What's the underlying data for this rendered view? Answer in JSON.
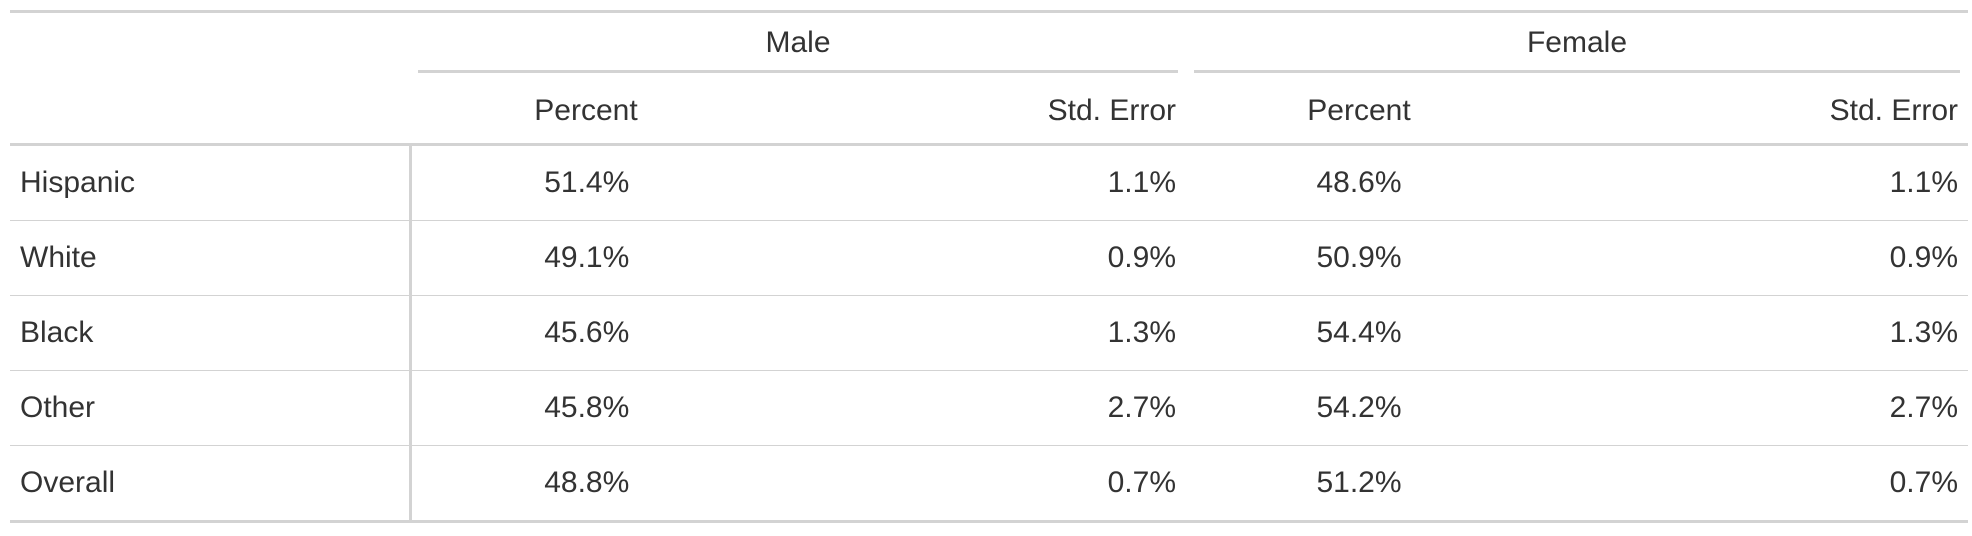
{
  "table": {
    "spanners": [
      {
        "label": "Male"
      },
      {
        "label": "Female"
      }
    ],
    "columns": [
      "Percent",
      "Std. Error",
      "Percent",
      "Std. Error"
    ],
    "rows": [
      {
        "label": "Hispanic",
        "male_percent": "51.4%",
        "male_se": "1.1%",
        "female_percent": "48.6%",
        "female_se": "1.1%"
      },
      {
        "label": "White",
        "male_percent": "49.1%",
        "male_se": "0.9%",
        "female_percent": "50.9%",
        "female_se": "0.9%"
      },
      {
        "label": "Black",
        "male_percent": "45.6%",
        "male_se": "1.3%",
        "female_percent": "54.4%",
        "female_se": "1.3%"
      },
      {
        "label": "Other",
        "male_percent": "45.8%",
        "male_se": "2.7%",
        "female_percent": "54.2%",
        "female_se": "2.7%"
      },
      {
        "label": "Overall",
        "male_percent": "48.8%",
        "male_se": "0.7%",
        "female_percent": "51.2%",
        "female_se": "0.7%"
      }
    ]
  }
}
